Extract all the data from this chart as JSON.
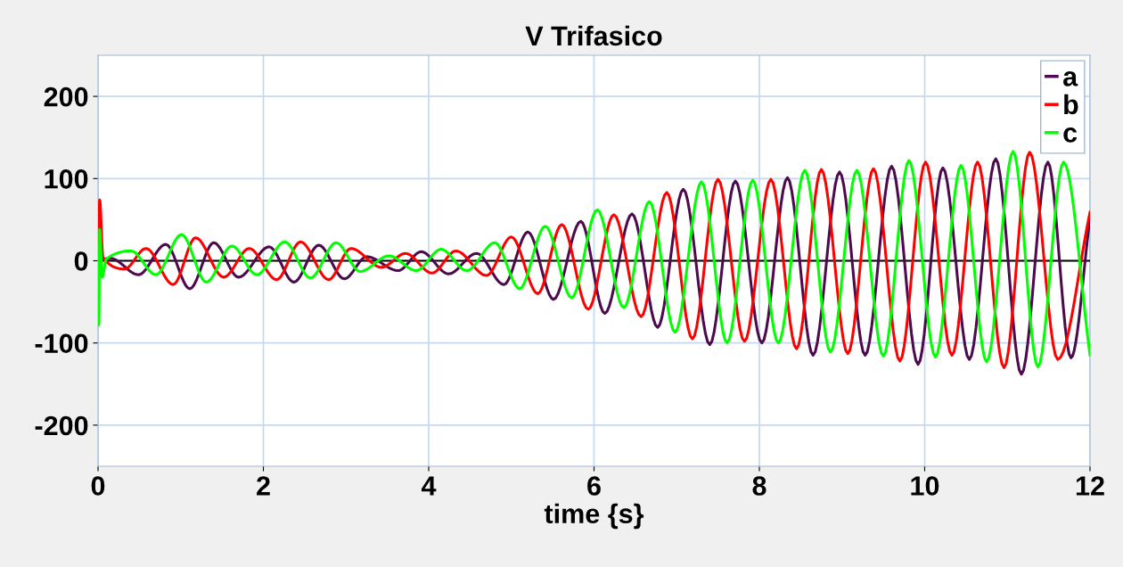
{
  "chart_data": {
    "type": "line",
    "title": "V Trifasico",
    "xlabel": "time {s}",
    "xlim": [
      0,
      12
    ],
    "xticks": [
      0,
      2,
      4,
      6,
      8,
      10,
      12
    ],
    "ylim": [
      -250,
      250
    ],
    "yticks": [
      -200,
      -100,
      0,
      100,
      200
    ],
    "grid": true,
    "legend": "top right",
    "marker": "none",
    "line_style": "solid",
    "ref_lines": [
      {
        "axis": "y",
        "value": 0,
        "color": "#000000"
      }
    ],
    "series": [
      {
        "name": "a",
        "color": "#4d0a4d",
        "x": [
          0,
          0.15,
          0.49,
          0.82,
          1.11,
          1.4,
          1.7,
          2.07,
          2.37,
          2.67,
          2.98,
          3.25,
          3.63,
          3.91,
          4.24,
          4.58,
          4.91,
          5.2,
          5.51,
          5.84,
          6.13,
          6.46,
          6.77,
          7.08,
          7.4,
          7.71,
          8.03,
          8.34,
          8.65,
          8.97,
          9.28,
          9.6,
          9.92,
          10.22,
          10.54,
          10.86,
          11.17,
          11.49,
          11.77,
          12
        ],
        "values": [
          0,
          3,
          -17,
          20,
          -34,
          22,
          -20,
          17,
          -26,
          19,
          -22,
          5,
          -12,
          11,
          -16,
          9,
          -29,
          35,
          -47,
          48,
          -64,
          57,
          -81,
          87,
          -102,
          97,
          -100,
          101,
          -115,
          108,
          -115,
          115,
          -126,
          113,
          -120,
          124,
          -138,
          120,
          -118,
          52
        ]
      },
      {
        "name": "b",
        "color": "#ff0000",
        "x": [
          0,
          0.02,
          0.06,
          0.32,
          0.58,
          0.91,
          1.18,
          1.52,
          1.83,
          2.16,
          2.45,
          2.79,
          3.06,
          3.43,
          3.72,
          4.04,
          4.33,
          4.7,
          5.0,
          5.32,
          5.61,
          5.93,
          6.24,
          6.57,
          6.88,
          7.19,
          7.5,
          7.82,
          8.14,
          8.45,
          8.75,
          9.07,
          9.38,
          9.7,
          10.01,
          10.33,
          10.64,
          10.96,
          11.27,
          11.61,
          12
        ],
        "values": [
          0,
          74,
          4,
          -10,
          15,
          -29,
          28,
          -20,
          15,
          -23,
          23,
          -23,
          15,
          -8,
          9,
          -15,
          12,
          -18,
          29,
          -40,
          44,
          -59,
          56,
          -68,
          83,
          -95,
          99,
          -98,
          99,
          -107,
          111,
          -113,
          112,
          -122,
          120,
          -115,
          120,
          -130,
          132,
          -120,
          59
        ]
      },
      {
        "name": "c",
        "color": "#00ff00",
        "x": [
          0,
          0.01,
          0.02,
          0.05,
          0.1,
          0.4,
          0.7,
          1.01,
          1.31,
          1.62,
          1.92,
          2.26,
          2.57,
          2.88,
          3.17,
          3.52,
          3.85,
          4.15,
          4.46,
          4.8,
          5.1,
          5.41,
          5.73,
          6.04,
          6.36,
          6.67,
          6.98,
          7.3,
          7.61,
          7.92,
          8.23,
          8.55,
          8.86,
          9.18,
          9.5,
          9.81,
          10.13,
          10.44,
          10.75,
          11.07,
          11.37,
          11.68,
          12
        ],
        "values": [
          0,
          -78,
          38,
          -20,
          2,
          12,
          -17,
          32,
          -26,
          18,
          -17,
          23,
          -21,
          22,
          -13,
          6,
          -12,
          14,
          -12,
          22,
          -34,
          42,
          -45,
          62,
          -57,
          72,
          -87,
          96,
          -100,
          98,
          -100,
          110,
          -111,
          110,
          -116,
          122,
          -117,
          116,
          -123,
          133,
          -129,
          120,
          -115
        ]
      }
    ]
  }
}
